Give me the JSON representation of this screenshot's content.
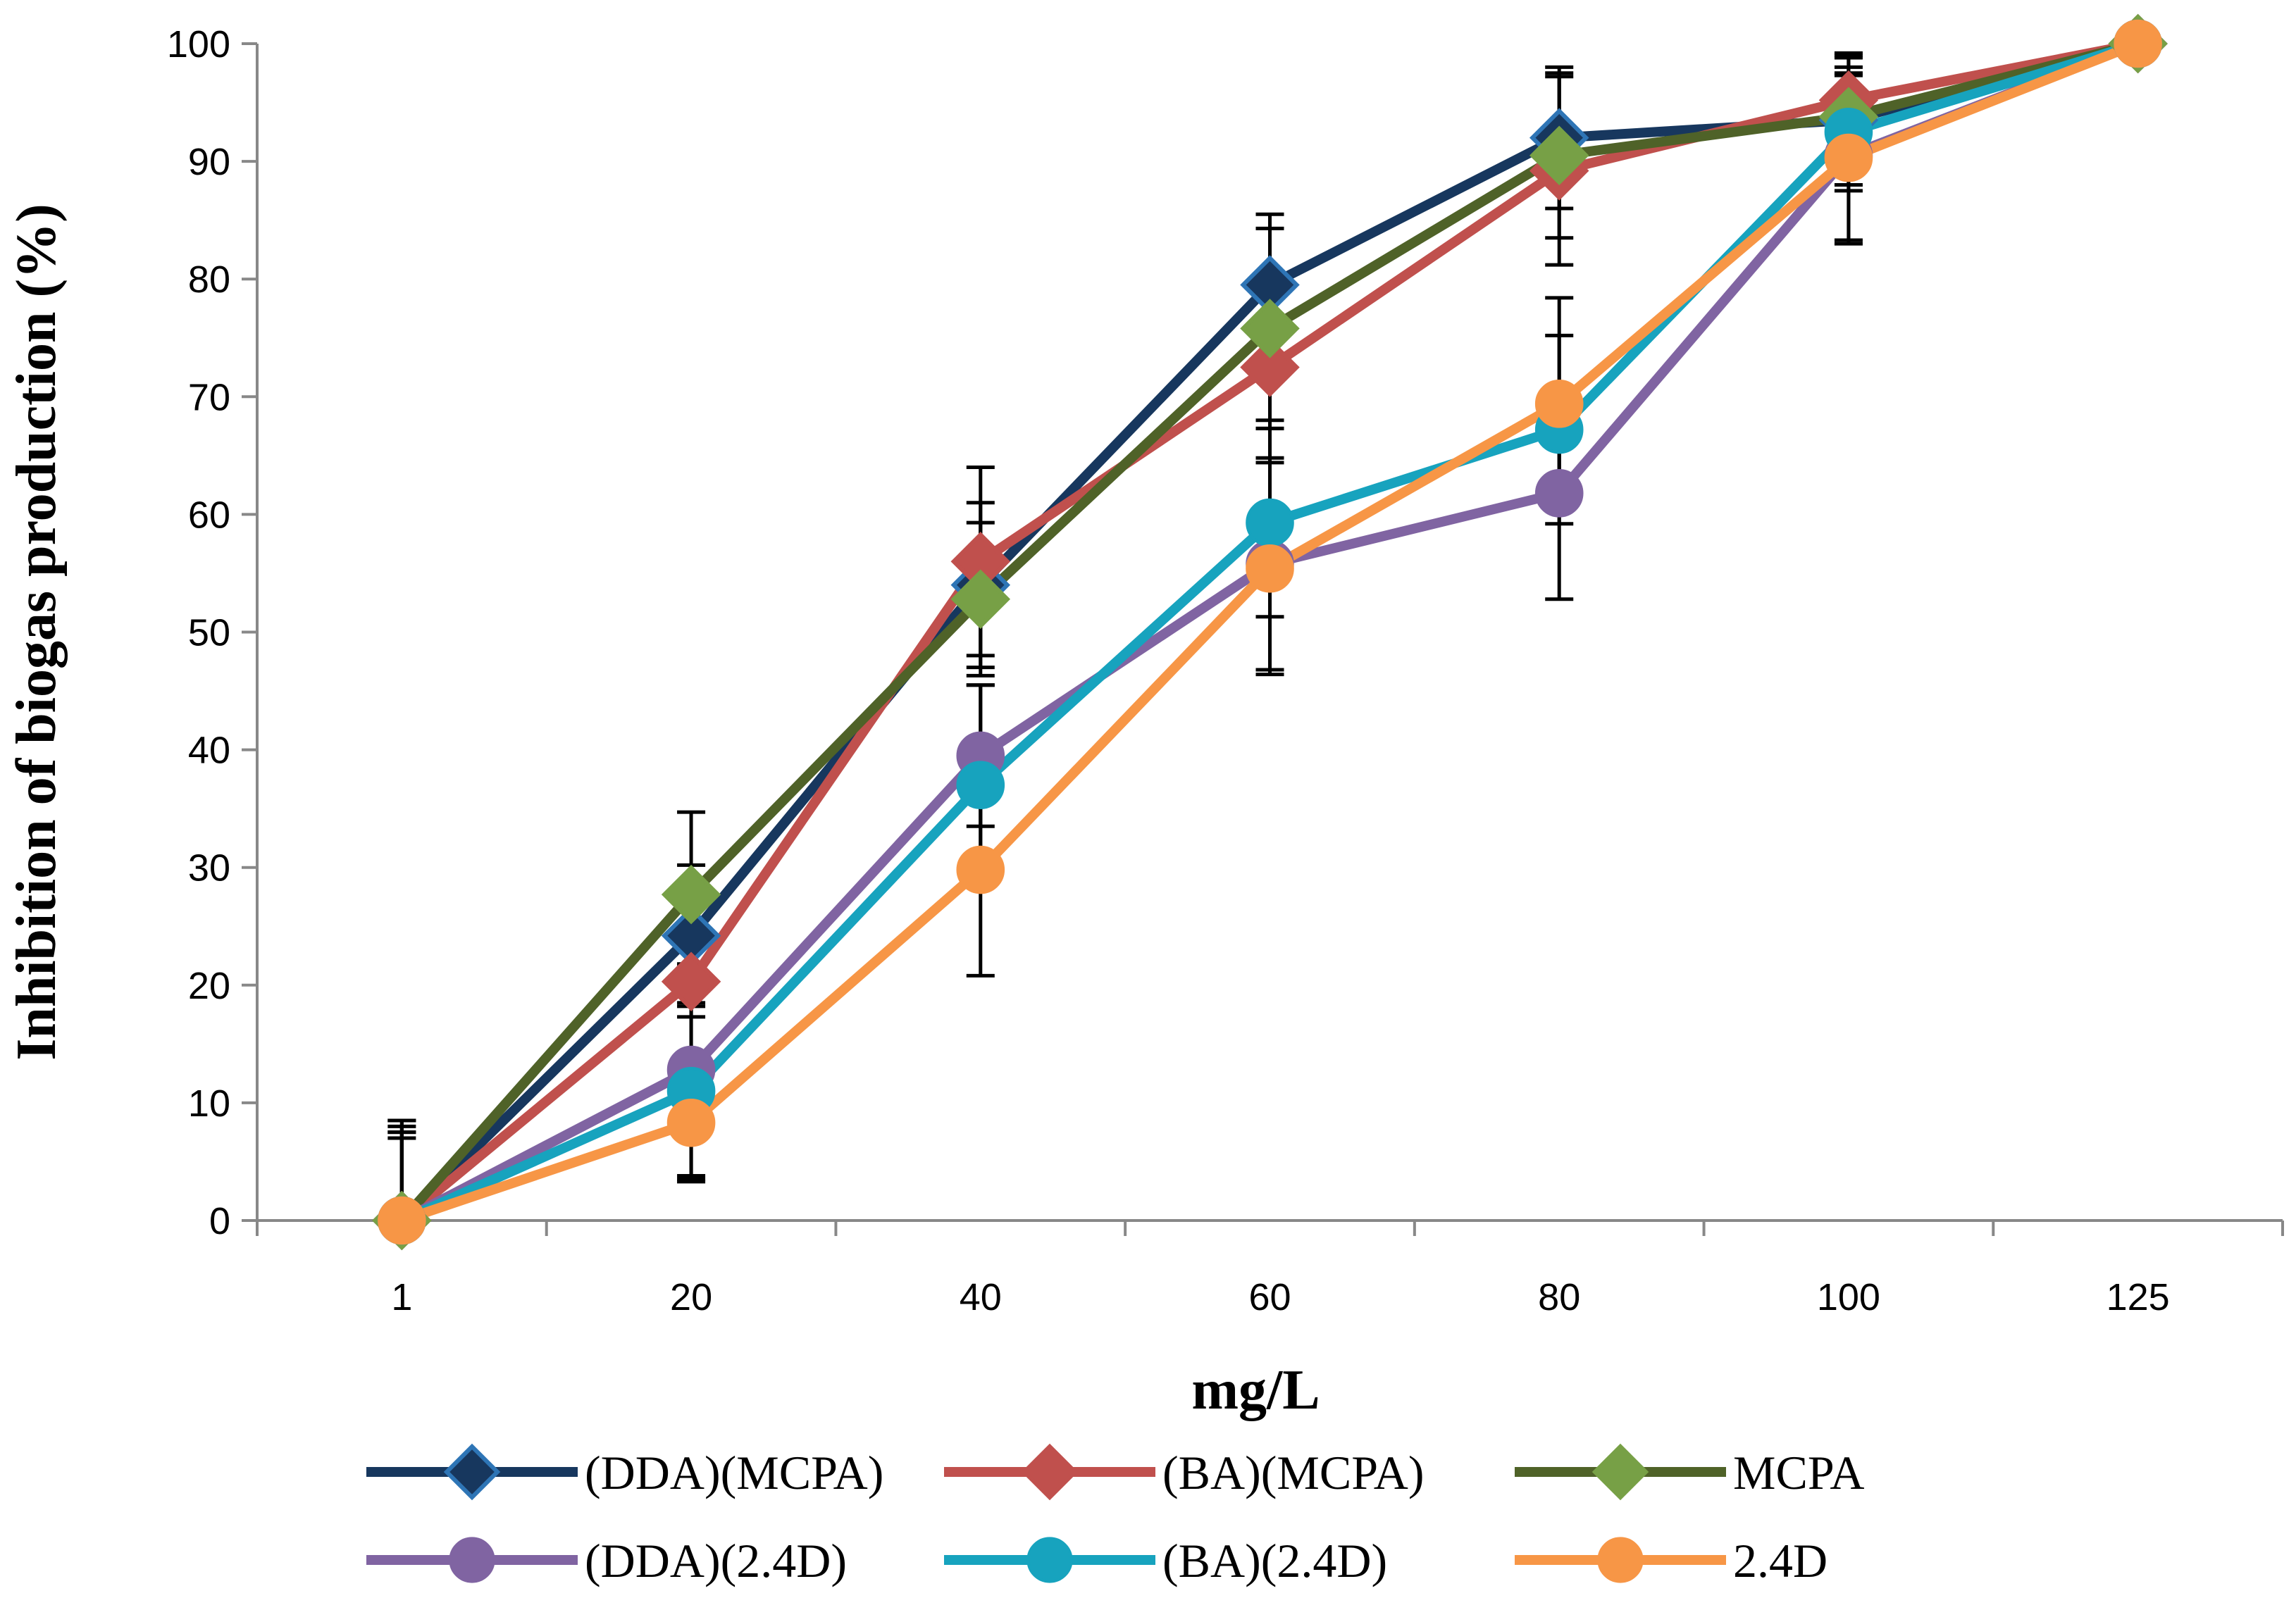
{
  "chart_data": {
    "type": "line",
    "title": "",
    "xlabel": "mg/L",
    "ylabel": "Inhibition of biogas production (%)",
    "categories": [
      "1",
      "20",
      "40",
      "60",
      "80",
      "100",
      "125"
    ],
    "ylim": [
      0,
      100
    ],
    "yticks": [
      0,
      10,
      20,
      30,
      40,
      50,
      60,
      70,
      80,
      90,
      100
    ],
    "grid": false,
    "legend_position": "bottom",
    "series": [
      {
        "name": "(DDA)(MCPA)",
        "marker": "diamond",
        "line_color": "#17375E",
        "marker_fill": "#17375E",
        "marker_stroke": "#2E75B6",
        "values": [
          0,
          24.2,
          54,
          79.5,
          92,
          93.5,
          100
        ],
        "error": [
          8,
          6,
          7,
          6,
          6,
          5.5,
          0
        ]
      },
      {
        "name": "(BA)(MCPA)",
        "marker": "diamond",
        "line_color": "#C0504D",
        "marker_fill": "#C0504D",
        "marker_stroke": "#C0504D",
        "values": [
          0,
          20.3,
          56,
          72.5,
          89.2,
          95.2,
          100
        ],
        "error": [
          7.5,
          3,
          8,
          4.5,
          8,
          4,
          0
        ]
      },
      {
        "name": "MCPA",
        "marker": "diamond",
        "line_color": "#4F6228",
        "marker_fill": "#77A046",
        "marker_stroke": "#77A046",
        "values": [
          0,
          27.7,
          52.8,
          75.8,
          90.5,
          93.8,
          100
        ],
        "error": [
          8.5,
          7,
          6.5,
          8.5,
          7,
          5,
          0
        ]
      },
      {
        "name": "(DDA)(2.4D)",
        "marker": "circle",
        "line_color": "#8064A2",
        "marker_fill": "#8064A2",
        "marker_stroke": "#8064A2",
        "values": [
          0,
          12.8,
          39.5,
          55.8,
          61.8,
          90.5,
          100
        ],
        "error": [
          7,
          9,
          6,
          9,
          9,
          7.5,
          0
        ]
      },
      {
        "name": "(BA)(2.4D)",
        "marker": "circle",
        "line_color": "#17A3BE",
        "marker_fill": "#17A3BE",
        "marker_stroke": "#17A3BE",
        "values": [
          0,
          11,
          37,
          59.3,
          67.2,
          92.5,
          100
        ],
        "error": [
          7.5,
          7.5,
          8.5,
          8,
          8,
          5,
          0
        ]
      },
      {
        "name": "2.4D",
        "marker": "circle",
        "line_color": "#F79646",
        "marker_fill": "#F79646",
        "marker_stroke": "#F79646",
        "values": [
          0,
          8.3,
          29.8,
          55.4,
          69.4,
          90.3,
          100
        ],
        "error": [
          8.5,
          5,
          9,
          9,
          9,
          7,
          0
        ]
      }
    ]
  }
}
